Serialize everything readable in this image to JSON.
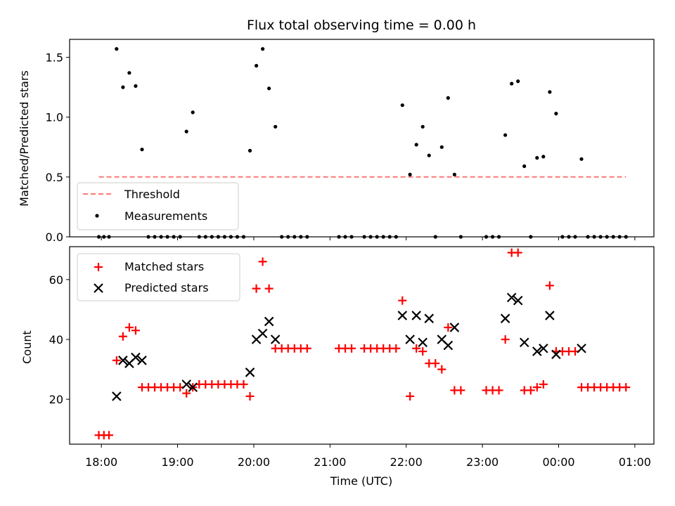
{
  "chart_data": [
    {
      "type": "scatter",
      "title": "Flux total observing time = 0.00 h",
      "xlabel": "",
      "ylabel": "Matched/Predicted stars",
      "ylim": [
        0,
        1.65
      ],
      "yticks": [
        "0.0",
        "0.5",
        "1.0",
        "1.5"
      ],
      "grid": false,
      "legend_position": "lower-left",
      "series": [
        {
          "name": "Threshold",
          "style": "dashed-line",
          "color": "#ff7777",
          "x": [
            "17:58",
            "23:56",
            "00:53"
          ],
          "values": [
            0.5,
            0.5,
            0.5
          ]
        },
        {
          "name": "Measurements",
          "style": "dot",
          "color": "#000000",
          "points": [
            [
              "17:58",
              0
            ],
            [
              "18:02",
              0
            ],
            [
              "18:06",
              0
            ],
            [
              "18:12",
              1.57
            ],
            [
              "18:17",
              1.25
            ],
            [
              "18:22",
              1.37
            ],
            [
              "18:27",
              1.26
            ],
            [
              "18:32",
              0.73
            ],
            [
              "18:37",
              0
            ],
            [
              "18:42",
              0
            ],
            [
              "18:47",
              0
            ],
            [
              "18:52",
              0
            ],
            [
              "18:57",
              0
            ],
            [
              "19:02",
              0
            ],
            [
              "19:07",
              0.88
            ],
            [
              "19:12",
              1.04
            ],
            [
              "19:17",
              0
            ],
            [
              "19:22",
              0
            ],
            [
              "19:27",
              0
            ],
            [
              "19:32",
              0
            ],
            [
              "19:37",
              0
            ],
            [
              "19:42",
              0
            ],
            [
              "19:47",
              0
            ],
            [
              "19:52",
              0
            ],
            [
              "19:57",
              0.72
            ],
            [
              "20:02",
              1.43
            ],
            [
              "20:07",
              1.57
            ],
            [
              "20:12",
              1.24
            ],
            [
              "20:17",
              0.92
            ],
            [
              "20:22",
              0
            ],
            [
              "20:27",
              0
            ],
            [
              "20:32",
              0
            ],
            [
              "20:37",
              0
            ],
            [
              "20:42",
              0
            ],
            [
              "21:07",
              0
            ],
            [
              "21:12",
              0
            ],
            [
              "21:17",
              0
            ],
            [
              "21:27",
              0
            ],
            [
              "21:32",
              0
            ],
            [
              "21:37",
              0
            ],
            [
              "21:42",
              0
            ],
            [
              "21:47",
              0
            ],
            [
              "21:52",
              0
            ],
            [
              "21:57",
              1.1
            ],
            [
              "22:03",
              0.52
            ],
            [
              "22:08",
              0.77
            ],
            [
              "22:13",
              0.92
            ],
            [
              "22:18",
              0.68
            ],
            [
              "22:23",
              0
            ],
            [
              "22:28",
              0.75
            ],
            [
              "22:33",
              1.16
            ],
            [
              "22:38",
              0.52
            ],
            [
              "22:43",
              0
            ],
            [
              "23:03",
              0
            ],
            [
              "23:08",
              0
            ],
            [
              "23:13",
              0
            ],
            [
              "23:18",
              0.85
            ],
            [
              "23:23",
              1.28
            ],
            [
              "23:28",
              1.3
            ],
            [
              "23:33",
              0.59
            ],
            [
              "23:38",
              0
            ],
            [
              "23:43",
              0.66
            ],
            [
              "23:48",
              0.67
            ],
            [
              "23:53",
              1.21
            ],
            [
              "23:58",
              1.03
            ],
            [
              "00:03",
              0
            ],
            [
              "00:08",
              0
            ],
            [
              "00:13",
              0
            ],
            [
              "00:18",
              0.65
            ],
            [
              "00:23",
              0
            ],
            [
              "00:28",
              0
            ],
            [
              "00:33",
              0
            ],
            [
              "00:38",
              0
            ],
            [
              "00:43",
              0
            ],
            [
              "00:48",
              0
            ],
            [
              "00:53",
              0
            ]
          ]
        }
      ]
    },
    {
      "type": "scatter",
      "title": "",
      "xlabel": "Time (UTC)",
      "ylabel": "Count",
      "xlim": [
        "17:35",
        "01:15"
      ],
      "xticks": [
        "18:00",
        "19:00",
        "20:00",
        "21:00",
        "22:00",
        "23:00",
        "00:00",
        "01:00"
      ],
      "ylim": [
        5,
        71
      ],
      "yticks": [
        "20",
        "40",
        "60"
      ],
      "grid": false,
      "legend_position": "upper-left",
      "series": [
        {
          "name": "Matched stars",
          "marker": "plus",
          "color": "#ff0000",
          "points": [
            [
              "17:58",
              8
            ],
            [
              "18:02",
              8
            ],
            [
              "18:06",
              8
            ],
            [
              "18:12",
              33
            ],
            [
              "18:17",
              41
            ],
            [
              "18:22",
              44
            ],
            [
              "18:27",
              43
            ],
            [
              "18:32",
              24
            ],
            [
              "18:37",
              24
            ],
            [
              "18:42",
              24
            ],
            [
              "18:47",
              24
            ],
            [
              "18:52",
              24
            ],
            [
              "18:57",
              24
            ],
            [
              "19:02",
              24
            ],
            [
              "19:07",
              22
            ],
            [
              "19:12",
              24
            ],
            [
              "19:17",
              25
            ],
            [
              "19:22",
              25
            ],
            [
              "19:27",
              25
            ],
            [
              "19:32",
              25
            ],
            [
              "19:37",
              25
            ],
            [
              "19:42",
              25
            ],
            [
              "19:47",
              25
            ],
            [
              "19:52",
              25
            ],
            [
              "19:57",
              21
            ],
            [
              "20:02",
              57
            ],
            [
              "20:07",
              66
            ],
            [
              "20:12",
              57
            ],
            [
              "20:17",
              37
            ],
            [
              "20:22",
              37
            ],
            [
              "20:27",
              37
            ],
            [
              "20:32",
              37
            ],
            [
              "20:37",
              37
            ],
            [
              "20:42",
              37
            ],
            [
              "21:07",
              37
            ],
            [
              "21:12",
              37
            ],
            [
              "21:17",
              37
            ],
            [
              "21:27",
              37
            ],
            [
              "21:32",
              37
            ],
            [
              "21:37",
              37
            ],
            [
              "21:42",
              37
            ],
            [
              "21:47",
              37
            ],
            [
              "21:52",
              37
            ],
            [
              "21:57",
              53
            ],
            [
              "22:03",
              21
            ],
            [
              "22:08",
              37
            ],
            [
              "22:13",
              36
            ],
            [
              "22:18",
              32
            ],
            [
              "22:23",
              32
            ],
            [
              "22:28",
              30
            ],
            [
              "22:33",
              44
            ],
            [
              "22:38",
              23
            ],
            [
              "22:43",
              23
            ],
            [
              "23:03",
              23
            ],
            [
              "23:08",
              23
            ],
            [
              "23:13",
              23
            ],
            [
              "23:18",
              40
            ],
            [
              "23:23",
              69
            ],
            [
              "23:28",
              69
            ],
            [
              "23:33",
              23
            ],
            [
              "23:38",
              23
            ],
            [
              "23:43",
              24
            ],
            [
              "23:48",
              25
            ],
            [
              "23:53",
              58
            ],
            [
              "23:58",
              36
            ],
            [
              "00:03",
              36
            ],
            [
              "00:08",
              36
            ],
            [
              "00:13",
              36
            ],
            [
              "00:18",
              24
            ],
            [
              "00:23",
              24
            ],
            [
              "00:28",
              24
            ],
            [
              "00:33",
              24
            ],
            [
              "00:38",
              24
            ],
            [
              "00:43",
              24
            ],
            [
              "00:48",
              24
            ],
            [
              "00:53",
              24
            ]
          ]
        },
        {
          "name": "Predicted stars",
          "marker": "x",
          "color": "#000000",
          "points": [
            [
              "18:12",
              21
            ],
            [
              "18:17",
              33
            ],
            [
              "18:22",
              32
            ],
            [
              "18:27",
              34
            ],
            [
              "18:32",
              33
            ],
            [
              "19:07",
              25
            ],
            [
              "19:12",
              24
            ],
            [
              "19:57",
              29
            ],
            [
              "20:02",
              40
            ],
            [
              "20:07",
              42
            ],
            [
              "20:12",
              46
            ],
            [
              "20:17",
              40
            ],
            [
              "21:57",
              48
            ],
            [
              "22:03",
              40
            ],
            [
              "22:08",
              48
            ],
            [
              "22:13",
              39
            ],
            [
              "22:18",
              47
            ],
            [
              "22:28",
              40
            ],
            [
              "22:33",
              38
            ],
            [
              "22:38",
              44
            ],
            [
              "23:18",
              47
            ],
            [
              "23:23",
              54
            ],
            [
              "23:28",
              53
            ],
            [
              "23:33",
              39
            ],
            [
              "23:43",
              36
            ],
            [
              "23:48",
              37
            ],
            [
              "23:53",
              48
            ],
            [
              "23:58",
              35
            ],
            [
              "00:18",
              37
            ]
          ]
        }
      ]
    }
  ]
}
